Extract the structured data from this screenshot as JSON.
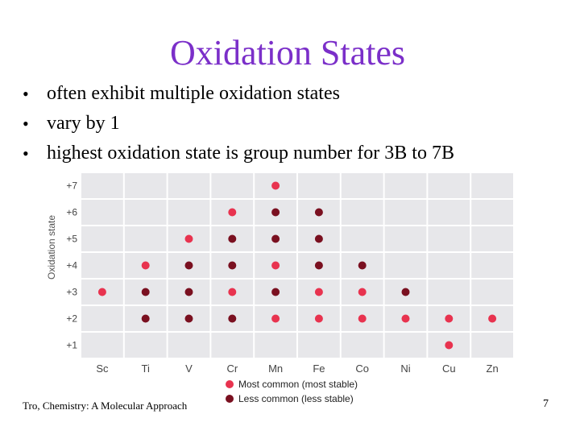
{
  "slide": {
    "title": "Oxidation States",
    "bullets": [
      "often exhibit multiple oxidation states",
      "vary by 1",
      "highest oxidation state is group number for 3B to 7B"
    ],
    "footer_left": "Tro, Chemistry: A Molecular Approach",
    "page_number": "7"
  },
  "chart_data": {
    "type": "scatter",
    "ylabel": "Oxidation state",
    "categories": [
      "Sc",
      "Ti",
      "V",
      "Cr",
      "Mn",
      "Fe",
      "Co",
      "Ni",
      "Cu",
      "Zn"
    ],
    "y_ticks": [
      "+1",
      "+2",
      "+3",
      "+4",
      "+5",
      "+6",
      "+7"
    ],
    "ylim": [
      1,
      7
    ],
    "grid": true,
    "legend_position": "bottom-center",
    "series": [
      {
        "name": "Most common (most stable)",
        "color": "#e8334f",
        "points": [
          {
            "x": "Sc",
            "y": 3
          },
          {
            "x": "Ti",
            "y": 4
          },
          {
            "x": "V",
            "y": 5
          },
          {
            "x": "Cr",
            "y": 3
          },
          {
            "x": "Cr",
            "y": 6
          },
          {
            "x": "Mn",
            "y": 2
          },
          {
            "x": "Mn",
            "y": 4
          },
          {
            "x": "Mn",
            "y": 7
          },
          {
            "x": "Fe",
            "y": 2
          },
          {
            "x": "Fe",
            "y": 3
          },
          {
            "x": "Co",
            "y": 2
          },
          {
            "x": "Co",
            "y": 3
          },
          {
            "x": "Ni",
            "y": 2
          },
          {
            "x": "Cu",
            "y": 1
          },
          {
            "x": "Cu",
            "y": 2
          },
          {
            "x": "Zn",
            "y": 2
          }
        ]
      },
      {
        "name": "Less common (less stable)",
        "color": "#7a1020",
        "points": [
          {
            "x": "Ti",
            "y": 2
          },
          {
            "x": "Ti",
            "y": 3
          },
          {
            "x": "V",
            "y": 2
          },
          {
            "x": "V",
            "y": 3
          },
          {
            "x": "V",
            "y": 4
          },
          {
            "x": "Cr",
            "y": 2
          },
          {
            "x": "Cr",
            "y": 4
          },
          {
            "x": "Cr",
            "y": 5
          },
          {
            "x": "Mn",
            "y": 3
          },
          {
            "x": "Mn",
            "y": 5
          },
          {
            "x": "Mn",
            "y": 6
          },
          {
            "x": "Fe",
            "y": 4
          },
          {
            "x": "Fe",
            "y": 5
          },
          {
            "x": "Fe",
            "y": 6
          },
          {
            "x": "Co",
            "y": 4
          },
          {
            "x": "Ni",
            "y": 3
          }
        ]
      }
    ]
  }
}
